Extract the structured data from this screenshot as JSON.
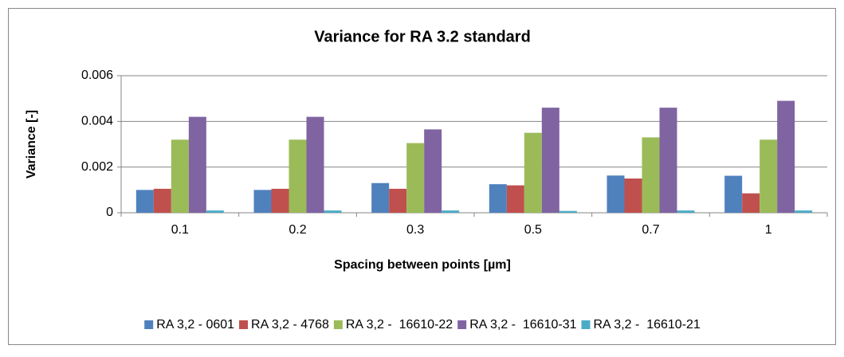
{
  "chart_data": {
    "type": "bar",
    "title": "Variance for RA 3.2 standard",
    "x_label": "Spacing between points [µm]",
    "y_label": "Variance [-]",
    "categories": [
      "0.1",
      "0.2",
      "0.3",
      "0.5",
      "0.7",
      "1"
    ],
    "series": [
      {
        "name": "RA 3,2 - 0601",
        "color": "#4f81bd",
        "values": [
          0.001,
          0.001,
          0.0013,
          0.00125,
          0.00163,
          0.00162
        ]
      },
      {
        "name": "RA 3,2 - 4768",
        "color": "#c0504d",
        "values": [
          0.00105,
          0.00105,
          0.00105,
          0.0012,
          0.0015,
          0.00085
        ]
      },
      {
        "name": "RA 3,2 -  16610-22",
        "color": "#9bbb59",
        "values": [
          0.0032,
          0.0032,
          0.00305,
          0.0035,
          0.0033,
          0.0032
        ]
      },
      {
        "name": "RA 3,2 -  16610-31",
        "color": "#8064a2",
        "values": [
          0.0042,
          0.0042,
          0.00365,
          0.0046,
          0.0046,
          0.0049
        ]
      },
      {
        "name": "RA 3,2 -  16610-21",
        "color": "#4bacc6",
        "values": [
          0.0001,
          0.0001,
          0.0001,
          8e-05,
          0.0001,
          0.0001
        ]
      }
    ],
    "ylim": [
      0,
      0.006
    ],
    "yticks": [
      0,
      0.002,
      0.004,
      0.006
    ],
    "grid": true,
    "legend": "bottom"
  }
}
